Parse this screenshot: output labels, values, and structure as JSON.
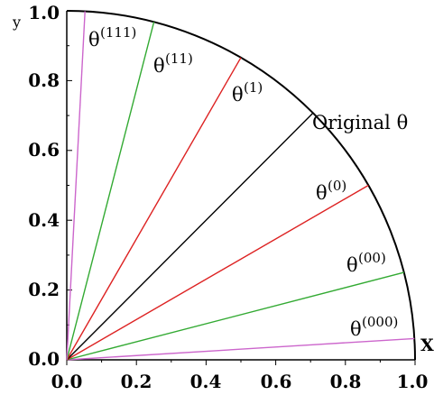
{
  "diagram": {
    "axis_x_label": "X",
    "axis_y_label": "y",
    "x_ticks": [
      "0.0",
      "0.2",
      "0.4",
      "0.6",
      "0.8",
      "1.0"
    ],
    "y_ticks": [
      "0.0",
      "0.2",
      "0.4",
      "0.6",
      "0.8",
      "1.0"
    ],
    "rays": [
      {
        "id": "theta-000",
        "angle_deg": 3.5,
        "color": "#cc66cc",
        "symbol": "θ",
        "superscript": "(000)"
      },
      {
        "id": "theta-00",
        "angle_deg": 14.5,
        "color": "#33aa33",
        "symbol": "θ",
        "superscript": "(00)"
      },
      {
        "id": "theta-0",
        "angle_deg": 30,
        "color": "#dd2222",
        "symbol": "θ",
        "superscript": "(0)"
      },
      {
        "id": "theta-original",
        "angle_deg": 45,
        "color": "#000000",
        "symbol": "Original θ",
        "superscript": ""
      },
      {
        "id": "theta-1",
        "angle_deg": 60,
        "color": "#dd2222",
        "symbol": "θ",
        "superscript": "(1)"
      },
      {
        "id": "theta-11",
        "angle_deg": 75.5,
        "color": "#33aa33",
        "symbol": "θ",
        "superscript": "(11)"
      },
      {
        "id": "theta-111",
        "angle_deg": 87,
        "color": "#cc66cc",
        "symbol": "θ",
        "superscript": "(111)"
      }
    ]
  }
}
